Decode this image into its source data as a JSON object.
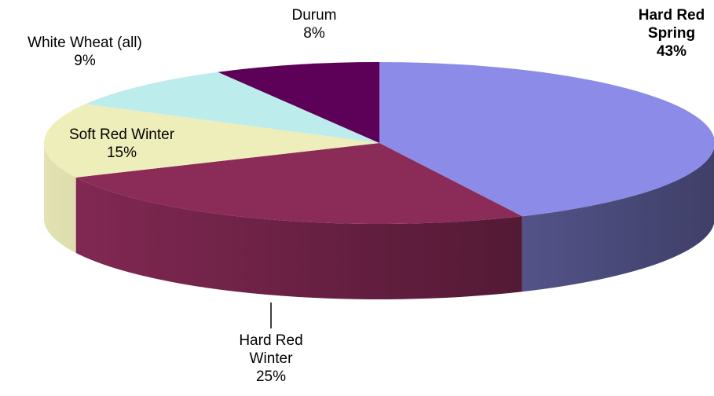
{
  "chart_data": {
    "type": "pie3d",
    "categories": [
      "Hard Red Spring",
      "Hard Red Winter",
      "Soft Red Winter",
      "White Wheat (all)",
      "Durum"
    ],
    "values": [
      43,
      25,
      15,
      9,
      8
    ],
    "value_labels": [
      "43%",
      "25%",
      "15%",
      "9%",
      "8%"
    ],
    "colors": [
      "#8c8ce8",
      "#8b2b58",
      "#eeeebb",
      "#bdecec",
      "#5c0058"
    ]
  }
}
